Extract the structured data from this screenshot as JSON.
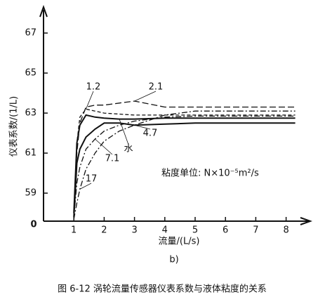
{
  "chart_data": {
    "type": "line",
    "y_label": "仪表系数/(1/L)",
    "x_label": "流量/(L/s)",
    "sub_label": "b)",
    "caption": "图 6-12   涡轮流量传感器仪表系数与液体粘度的关系",
    "annotation": "粘度单位: N×10⁻⁵m²/s",
    "origin_label": "0",
    "xlim": [
      0,
      8.75
    ],
    "ylim": [
      57.6,
      68.3
    ],
    "xticks": [
      1,
      2,
      3,
      4,
      5,
      6,
      7,
      8
    ],
    "yticks": [
      59,
      61,
      63,
      65,
      67
    ],
    "x": [
      1,
      1.1,
      1.2,
      1.4,
      1.7,
      2,
      2.5,
      3,
      4,
      5,
      6,
      7,
      8.3
    ],
    "series": [
      {
        "name": "1.2",
        "color": "#111111",
        "style": "dashed",
        "values": [
          58.0,
          61.5,
          62.8,
          63.2,
          63.1,
          63.0,
          62.95,
          62.9,
          62.9,
          62.9,
          62.9,
          62.9,
          62.9
        ]
      },
      {
        "name": "2.1",
        "color": "#111111",
        "style": "long-dashed",
        "values": [
          58.0,
          61.0,
          62.5,
          63.3,
          63.4,
          63.4,
          63.5,
          63.6,
          63.3,
          63.3,
          63.3,
          63.3,
          63.3
        ]
      },
      {
        "name": "水",
        "color": "#111111",
        "style": "solid",
        "values": [
          58.0,
          61.5,
          62.4,
          62.9,
          62.8,
          62.75,
          62.7,
          62.7,
          62.75,
          62.75,
          62.75,
          62.75,
          62.75
        ]
      },
      {
        "name": "4.7",
        "color": "#111111",
        "style": "solid",
        "values": [
          57.8,
          60.5,
          61.2,
          61.8,
          62.2,
          62.5,
          62.5,
          62.4,
          62.45,
          62.5,
          62.5,
          62.5,
          62.5
        ]
      },
      {
        "name": "7.1",
        "color": "#111111",
        "style": "dash-dot",
        "values": [
          57.8,
          59.5,
          60.3,
          61.2,
          61.7,
          62.1,
          62.4,
          62.6,
          62.8,
          62.85,
          62.85,
          62.85,
          62.85
        ]
      },
      {
        "name": "17",
        "color": "#111111",
        "style": "dash-dot",
        "values": [
          57.7,
          58.5,
          59.2,
          60.2,
          61.0,
          61.6,
          62.1,
          62.4,
          62.9,
          63.1,
          63.1,
          63.1,
          63.1
        ]
      }
    ]
  }
}
